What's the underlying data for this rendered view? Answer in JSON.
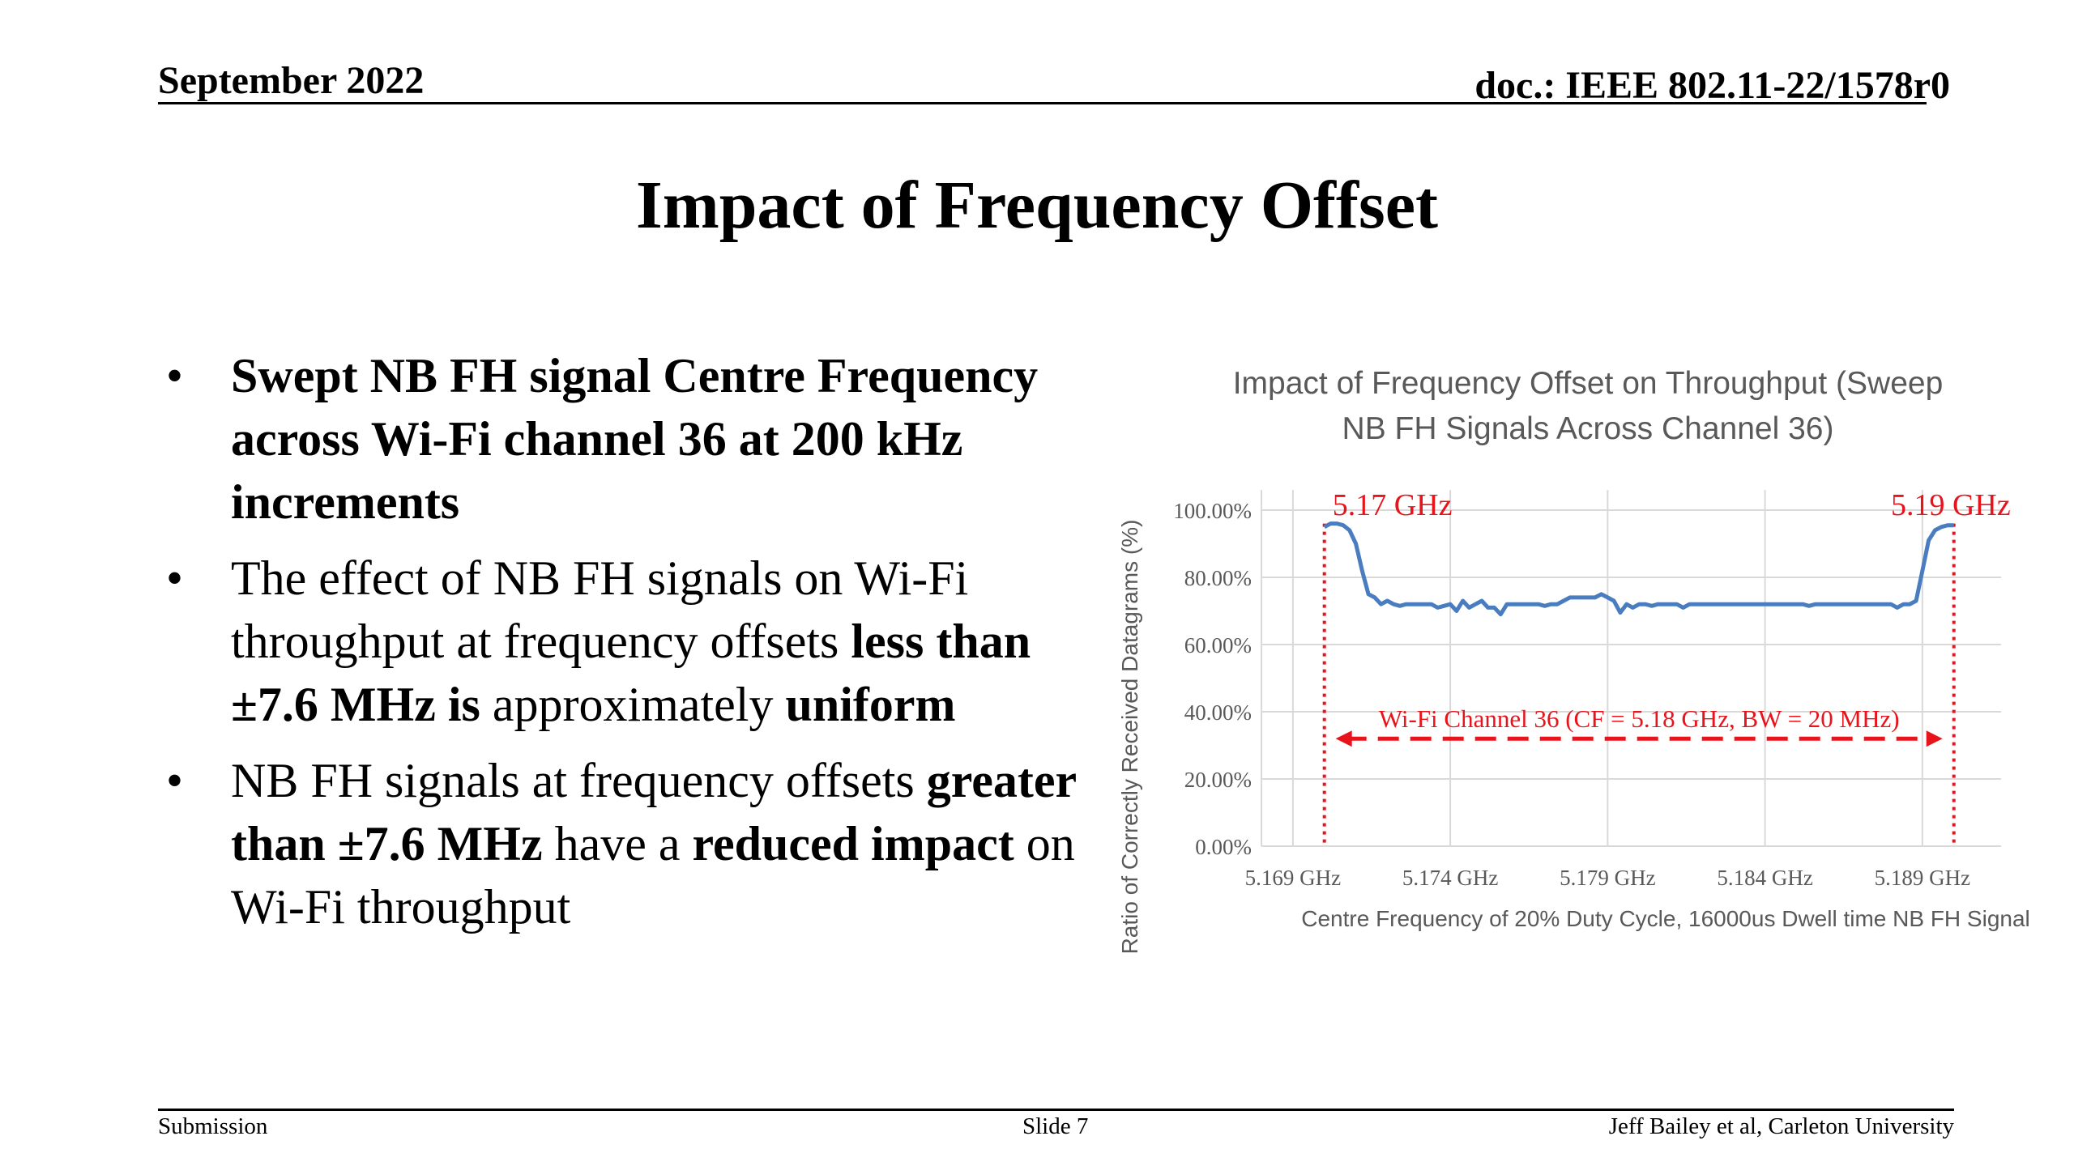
{
  "header": {
    "date": "September 2022",
    "doc": "doc.: IEEE 802.11-22/1578r0"
  },
  "slide_title": "Impact of Frequency Offset",
  "bullets": [
    {
      "segments": [
        {
          "text": "Swept NB FH signal Centre Frequency across Wi-Fi channel 36 at 200 kHz increments",
          "bold": true
        }
      ]
    },
    {
      "segments": [
        {
          "text": "The effect of NB FH signals on Wi-Fi throughput at frequency offsets ",
          "bold": false
        },
        {
          "text": "less than ±7.6 MHz is",
          "bold": true
        },
        {
          "text": " approximately ",
          "bold": false
        },
        {
          "text": "uniform",
          "bold": true
        }
      ]
    },
    {
      "segments": [
        {
          "text": "NB FH signals at frequency offsets ",
          "bold": false
        },
        {
          "text": "greater than ±7.6 MHz",
          "bold": true
        },
        {
          "text": " have a ",
          "bold": false
        },
        {
          "text": "reduced impact",
          "bold": true
        },
        {
          "text": " on Wi-Fi throughput",
          "bold": false
        }
      ]
    }
  ],
  "footer": {
    "left": "Submission",
    "center": "Slide 7",
    "right": "Jeff Bailey et al, Carleton University"
  },
  "colors": {
    "line": "#4a7dc0",
    "annotation": "#e8141c",
    "grid": "#d9d9d9",
    "axis_text": "#595959"
  },
  "chart_data": {
    "type": "line",
    "title": "Impact of Frequency Offset on Throughput (Sweep NB FH Signals Across Channel 36)",
    "title_lines": [
      "Impact of Frequency Offset on Throughput (Sweep",
      "NB FH Signals Across Channel 36)"
    ],
    "xlabel": "Centre Frequency of 20% Duty Cycle, 16000us Dwell time NB FH Signal",
    "ylabel": "Ratio of Correctly Received Datagrams (%)",
    "xlim": [
      5.168,
      5.1915
    ],
    "ylim": [
      0,
      100
    ],
    "x_ticks": [
      5.169,
      5.174,
      5.179,
      5.184,
      5.189
    ],
    "x_tick_labels": [
      "5.169 GHz",
      "5.174 GHz",
      "5.179 GHz",
      "5.184 GHz",
      "5.189 GHz"
    ],
    "y_ticks": [
      0,
      20,
      40,
      60,
      80,
      100
    ],
    "y_tick_labels": [
      "0.00%",
      "20.00%",
      "40.00%",
      "60.00%",
      "80.00%",
      "100.00%"
    ],
    "grid": true,
    "series": [
      {
        "x": [
          5.17,
          5.1702,
          5.1704,
          5.1706,
          5.1708,
          5.171,
          5.1712,
          5.1714,
          5.1716,
          5.1718,
          5.172,
          5.1722,
          5.1724,
          5.1726,
          5.1728,
          5.173,
          5.1732,
          5.1734,
          5.1736,
          5.1738,
          5.174,
          5.1742,
          5.1744,
          5.1746,
          5.1748,
          5.175,
          5.1752,
          5.1754,
          5.1756,
          5.1758,
          5.176,
          5.1762,
          5.1764,
          5.1766,
          5.1768,
          5.177,
          5.1772,
          5.1774,
          5.1776,
          5.1778,
          5.178,
          5.1782,
          5.1784,
          5.1786,
          5.1788,
          5.179,
          5.1792,
          5.1794,
          5.1796,
          5.1798,
          5.18,
          5.1802,
          5.1804,
          5.1806,
          5.1808,
          5.181,
          5.1812,
          5.1814,
          5.1816,
          5.1818,
          5.182,
          5.1822,
          5.1824,
          5.1826,
          5.1828,
          5.183,
          5.1832,
          5.1834,
          5.1836,
          5.1838,
          5.184,
          5.1842,
          5.1844,
          5.1846,
          5.1848,
          5.185,
          5.1852,
          5.1854,
          5.1856,
          5.1858,
          5.186,
          5.1862,
          5.1864,
          5.1866,
          5.1868,
          5.187,
          5.1872,
          5.1874,
          5.1876,
          5.1878,
          5.188,
          5.1882,
          5.1884,
          5.1886,
          5.1888,
          5.189,
          5.1892,
          5.1894,
          5.1896,
          5.1898,
          5.19
        ],
        "values": [
          95,
          96,
          96,
          95.5,
          94,
          90,
          82,
          75,
          74,
          72,
          73,
          72,
          71.5,
          72,
          72,
          72,
          72,
          72,
          71,
          71.5,
          72,
          70,
          73,
          71,
          72,
          73,
          71,
          71,
          69,
          72,
          72,
          72,
          72,
          72,
          72,
          71.5,
          72,
          72,
          73,
          74,
          74,
          74,
          74,
          74,
          75,
          74,
          73,
          69.5,
          72,
          71,
          72,
          72,
          71.5,
          72,
          72,
          72,
          72,
          71,
          72,
          72,
          72,
          72,
          72,
          72,
          72,
          72,
          72,
          72,
          72,
          72,
          72,
          72,
          72,
          72,
          72,
          72,
          72,
          71.5,
          72,
          72,
          72,
          72,
          72,
          72,
          72,
          72,
          72,
          72,
          72,
          72,
          72,
          71,
          72,
          72,
          73,
          82,
          91,
          94,
          95,
          95.5,
          95.5
        ]
      }
    ],
    "annotations": {
      "left_marker_label": "5.17 GHz",
      "right_marker_label": "5.19 GHz",
      "left_marker_x": 5.17,
      "right_marker_x": 5.19,
      "channel_label": "Wi-Fi Channel 36 (CF = 5.18 GHz, BW = 20 MHz)",
      "arrow_y": 32
    }
  }
}
